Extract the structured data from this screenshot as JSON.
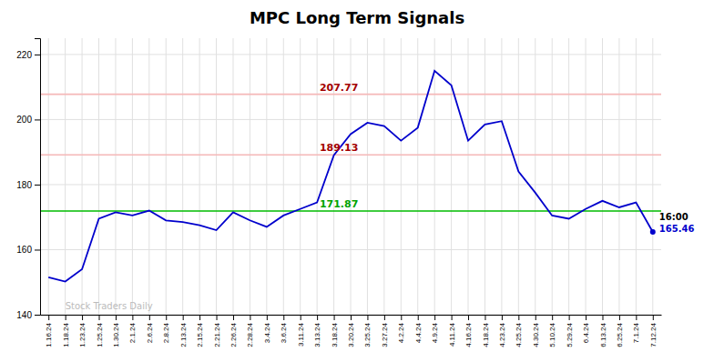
{
  "chart_data": {
    "type": "line",
    "title": "MPC Long Term Signals",
    "categories": [
      "1.16.24",
      "1.18.24",
      "1.23.24",
      "1.25.24",
      "1.30.24",
      "2.1.24",
      "2.6.24",
      "2.8.24",
      "2.13.24",
      "2.15.24",
      "2.21.24",
      "2.26.24",
      "2.28.24",
      "3.4.24",
      "3.6.24",
      "3.11.24",
      "3.13.24",
      "3.18.24",
      "3.20.24",
      "3.25.24",
      "3.27.24",
      "4.2.24",
      "4.4.24",
      "4.9.24",
      "4.11.24",
      "4.16.24",
      "4.18.24",
      "4.23.24",
      "4.25.24",
      "4.30.24",
      "5.10.24",
      "5.29.24",
      "6.4.24",
      "6.13.24",
      "6.25.24",
      "7.1.24",
      "7.12.24"
    ],
    "values": [
      151.5,
      150.2,
      154.0,
      169.5,
      171.5,
      170.5,
      172.0,
      169.0,
      168.5,
      167.5,
      166.0,
      171.5,
      169.0,
      167.0,
      170.5,
      172.5,
      174.5,
      189.0,
      195.5,
      199.0,
      198.0,
      193.5,
      197.5,
      215.0,
      210.5,
      193.5,
      198.5,
      199.5,
      184.0,
      177.5,
      170.5,
      169.5,
      172.5,
      175.0,
      173.0,
      174.5,
      165.46
    ],
    "color": "#0000cc",
    "ylim": [
      140,
      225
    ],
    "yticks": [
      140,
      160,
      180,
      200,
      220
    ],
    "grid": true,
    "hlines": [
      {
        "value": 207.77,
        "label": "207.77",
        "color": "#f5b8b8"
      },
      {
        "value": 189.13,
        "label": "189.13",
        "color": "#f5b8b8"
      },
      {
        "value": 171.87,
        "label": "171.87",
        "color": "#00bb00"
      }
    ],
    "annotations": [
      "16:00",
      "165.46",
      "Stock Traders Daily"
    ]
  }
}
